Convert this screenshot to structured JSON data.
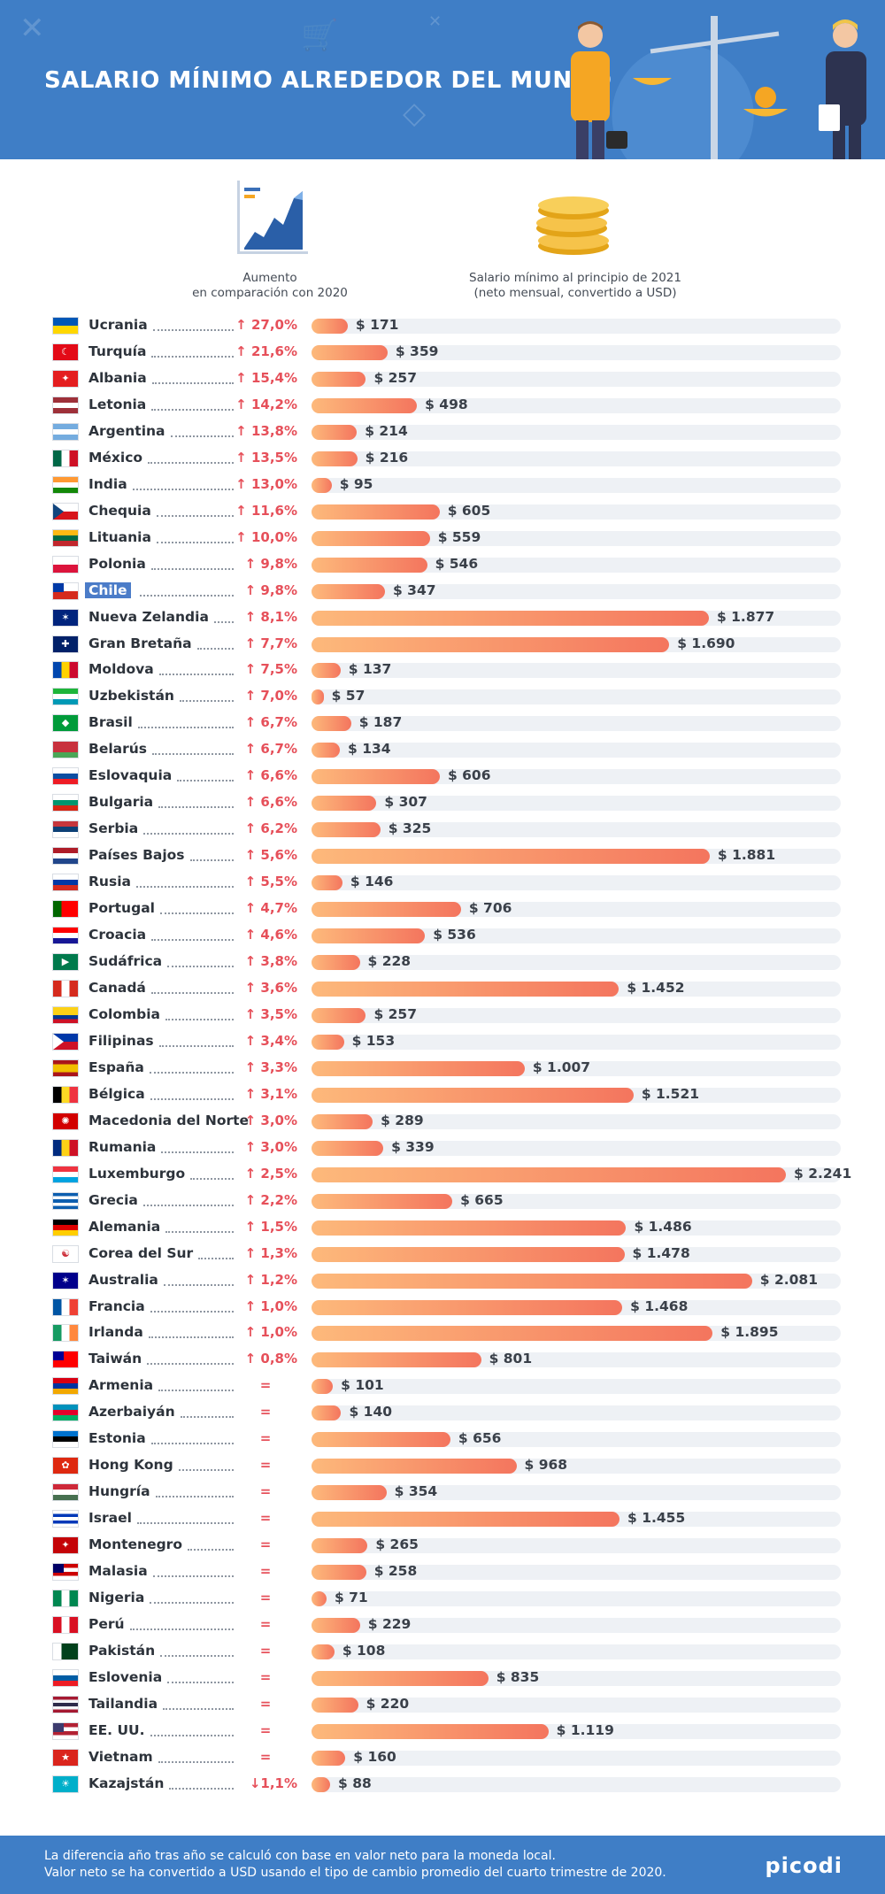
{
  "header": {
    "title": "SALARIO MÍNIMO ALREDEDOR DEL MUNDO"
  },
  "columns": {
    "increase_label_1": "Aumento",
    "increase_label_2": "en comparación con 2020",
    "salary_label_1": "Salario mínimo al principio de 2021",
    "salary_label_2": "(neto mensual, convertido a USD)"
  },
  "footer": {
    "note_1": "La diferencia año tras año se calculó con base en valor neto para la moneda local.",
    "note_2": "Valor neto se ha convertido a USD usando el tipo de cambio promedio del cuarto trimestre de 2020.",
    "brand": "picodi"
  },
  "colors": {
    "header": "#3f7ec6",
    "bar_start": "#fdb97b",
    "bar_end": "#f4755e",
    "increase": "#e6505a",
    "highlight": "#4b7cc8"
  },
  "chart_data": {
    "type": "bar",
    "orientation": "horizontal",
    "xlim": [
      0,
      2500
    ],
    "grid": false,
    "categories": [
      "Ucrania",
      "Turquía",
      "Albania",
      "Letonia",
      "Argentina",
      "México",
      "India",
      "Chequia",
      "Lituania",
      "Polonia",
      "Chile",
      "Nueva Zelandia",
      "Gran Bretaña",
      "Moldova",
      "Uzbekistán",
      "Brasil",
      "Belarús",
      "Eslovaquia",
      "Bulgaria",
      "Serbia",
      "Países Bajos",
      "Rusia",
      "Portugal",
      "Croacia",
      "Sudáfrica",
      "Canadá",
      "Colombia",
      "Filipinas",
      "España",
      "Bélgica",
      "Macedonia del Norte",
      "Rumania",
      "Luxemburgo",
      "Grecia",
      "Alemania",
      "Corea del Sur",
      "Australia",
      "Francia",
      "Irlanda",
      "Taiwán",
      "Armenia",
      "Azerbaiyán",
      "Estonia",
      "Hong Kong",
      "Hungría",
      "Israel",
      "Montenegro",
      "Malasia",
      "Nigeria",
      "Perú",
      "Pakistán",
      "Eslovenia",
      "Tailandia",
      "EE. UU.",
      "Vietnam",
      "Kazajstán"
    ],
    "values": [
      171,
      359,
      257,
      498,
      214,
      216,
      95,
      605,
      559,
      546,
      347,
      1877,
      1690,
      137,
      57,
      187,
      134,
      606,
      307,
      325,
      1881,
      146,
      706,
      536,
      228,
      1452,
      257,
      153,
      1007,
      1521,
      289,
      339,
      2241,
      665,
      1486,
      1478,
      2081,
      1468,
      1895,
      801,
      101,
      140,
      656,
      968,
      354,
      1455,
      265,
      258,
      71,
      229,
      108,
      835,
      220,
      1119,
      160,
      88
    ],
    "value_labels": [
      "$ 171",
      "$ 359",
      "$ 257",
      "$ 498",
      "$ 214",
      "$ 216",
      "$ 95",
      "$ 605",
      "$ 559",
      "$ 546",
      "$ 347",
      "$ 1.877",
      "$ 1.690",
      "$ 137",
      "$ 57",
      "$ 187",
      "$ 134",
      "$ 606",
      "$ 307",
      "$ 325",
      "$ 1.881",
      "$ 146",
      "$ 706",
      "$ 536",
      "$ 228",
      "$ 1.452",
      "$ 257",
      "$ 153",
      "$ 1.007",
      "$ 1.521",
      "$ 289",
      "$ 339",
      "$ 2.241",
      "$ 665",
      "$ 1.486",
      "$ 1.478",
      "$ 2.081",
      "$ 1.468",
      "$ 1.895",
      "$ 801",
      "$ 101",
      "$ 140",
      "$ 656",
      "$ 968",
      "$ 354",
      "$ 1.455",
      "$ 265",
      "$ 258",
      "$ 71",
      "$ 229",
      "$ 108",
      "$ 835",
      "$ 220",
      "$ 1.119",
      "$ 160",
      "$ 88"
    ],
    "increase_labels": [
      "↑ 27,0%",
      "↑ 21,6%",
      "↑ 15,4%",
      "↑ 14,2%",
      "↑ 13,8%",
      "↑ 13,5%",
      "↑ 13,0%",
      "↑ 11,6%",
      "↑ 10,0%",
      "↑ 9,8%",
      "↑ 9,8%",
      "↑ 8,1%",
      "↑ 7,7%",
      "↑ 7,5%",
      "↑ 7,0%",
      "↑ 6,7%",
      "↑ 6,7%",
      "↑ 6,6%",
      "↑ 6,6%",
      "↑ 6,2%",
      "↑ 5,6%",
      "↑ 5,5%",
      "↑ 4,7%",
      "↑ 4,6%",
      "↑ 3,8%",
      "↑ 3,6%",
      "↑ 3,5%",
      "↑ 3,4%",
      "↑ 3,3%",
      "↑ 3,1%",
      "↑ 3,0%",
      "↑ 3,0%",
      "↑ 2,5%",
      "↑ 2,2%",
      "↑ 1,5%",
      "↑ 1,3%",
      "↑ 1,2%",
      "↑ 1,0%",
      "↑ 1,0%",
      "↑ 0,8%",
      "=",
      "=",
      "=",
      "=",
      "=",
      "=",
      "=",
      "=",
      "=",
      "=",
      "=",
      "=",
      "=",
      "=",
      "=",
      "↓1,1%"
    ],
    "highlighted": "Chile",
    "flags": [
      {
        "stripes": [
          "#0057b7",
          "#ffd700"
        ]
      },
      {
        "fill": "#e30a17",
        "mark": "☾"
      },
      {
        "fill": "#e41e20",
        "mark": "✦"
      },
      {
        "stripes": [
          "#9e3039",
          "#ffffff",
          "#9e3039"
        ]
      },
      {
        "stripes": [
          "#74acdf",
          "#ffffff",
          "#74acdf"
        ]
      },
      {
        "vstripes": [
          "#006847",
          "#ffffff",
          "#ce1126"
        ]
      },
      {
        "stripes": [
          "#ff9933",
          "#ffffff",
          "#138808"
        ]
      },
      {
        "stripes": [
          "#ffffff",
          "#d7141a"
        ],
        "tri": "#11457e"
      },
      {
        "stripes": [
          "#fdb913",
          "#006a44",
          "#c1272d"
        ]
      },
      {
        "stripes": [
          "#ffffff",
          "#dc143c"
        ]
      },
      {
        "stripes": [
          "#ffffff",
          "#d52b1e"
        ],
        "canton": "#0039a6"
      },
      {
        "fill": "#00247d",
        "mark": "✶"
      },
      {
        "fill": "#012169",
        "mark": "✚"
      },
      {
        "vstripes": [
          "#0046ae",
          "#ffd200",
          "#cc092f"
        ]
      },
      {
        "stripes": [
          "#1eb53a",
          "#ffffff",
          "#0099b5"
        ]
      },
      {
        "fill": "#009b3a",
        "mark": "◆"
      },
      {
        "stripes": [
          "#c8313e",
          "#c8313e",
          "#4aa657"
        ]
      },
      {
        "stripes": [
          "#ffffff",
          "#0b4ea2",
          "#ee1c25"
        ]
      },
      {
        "stripes": [
          "#ffffff",
          "#00966e",
          "#d62612"
        ]
      },
      {
        "stripes": [
          "#c6363c",
          "#0c4076",
          "#ffffff"
        ]
      },
      {
        "stripes": [
          "#ae1c28",
          "#ffffff",
          "#21468b"
        ]
      },
      {
        "stripes": [
          "#ffffff",
          "#0039a6",
          "#d52b1e"
        ]
      },
      {
        "vstripes": [
          "#006600",
          "#ff0000",
          "#ff0000"
        ]
      },
      {
        "stripes": [
          "#ff0000",
          "#ffffff",
          "#171796"
        ]
      },
      {
        "fill": "#007a4d",
        "mark": "▶"
      },
      {
        "vstripes": [
          "#d52b1e",
          "#ffffff",
          "#d52b1e"
        ]
      },
      {
        "stripes": [
          "#fcd116",
          "#fcd116",
          "#003893",
          "#ce1126"
        ]
      },
      {
        "stripes": [
          "#0038a8",
          "#ce1126"
        ],
        "tri": "#ffffff"
      },
      {
        "stripes": [
          "#aa151b",
          "#f1bf00",
          "#f1bf00",
          "#aa151b"
        ]
      },
      {
        "vstripes": [
          "#000000",
          "#fdda24",
          "#ef3340"
        ]
      },
      {
        "fill": "#d20000",
        "mark": "✺"
      },
      {
        "vstripes": [
          "#002b7f",
          "#fcd116",
          "#ce1126"
        ]
      },
      {
        "stripes": [
          "#ef3340",
          "#ffffff",
          "#00a3e0"
        ]
      },
      {
        "stripes": [
          "#0d5eaf",
          "#ffffff",
          "#0d5eaf",
          "#ffffff",
          "#0d5eaf"
        ]
      },
      {
        "stripes": [
          "#000000",
          "#dd0000",
          "#ffce00"
        ]
      },
      {
        "fill": "#ffffff",
        "mark": "☯"
      },
      {
        "fill": "#00008b",
        "mark": "✶"
      },
      {
        "vstripes": [
          "#0055a4",
          "#ffffff",
          "#ef4135"
        ]
      },
      {
        "vstripes": [
          "#169b62",
          "#ffffff",
          "#ff883e"
        ]
      },
      {
        "stripes": [
          "#fe0000",
          "#fe0000"
        ],
        "canton": "#000095"
      },
      {
        "stripes": [
          "#d90012",
          "#0033a0",
          "#f2a800"
        ]
      },
      {
        "stripes": [
          "#0092bc",
          "#e4002b",
          "#00af66"
        ]
      },
      {
        "stripes": [
          "#0072ce",
          "#000000",
          "#ffffff"
        ]
      },
      {
        "fill": "#de2910",
        "mark": "✿"
      },
      {
        "stripes": [
          "#ce2939",
          "#ffffff",
          "#477050"
        ]
      },
      {
        "stripes": [
          "#ffffff",
          "#0038b8",
          "#ffffff",
          "#0038b8",
          "#ffffff"
        ]
      },
      {
        "fill": "#c40308",
        "mark": "✦"
      },
      {
        "stripes": [
          "#cc0001",
          "#ffffff",
          "#cc0001",
          "#ffffff"
        ],
        "canton": "#010066"
      },
      {
        "vstripes": [
          "#008751",
          "#ffffff",
          "#008751"
        ]
      },
      {
        "vstripes": [
          "#d91023",
          "#ffffff",
          "#d91023"
        ]
      },
      {
        "vstripes": [
          "#ffffff",
          "#01411c",
          "#01411c"
        ]
      },
      {
        "stripes": [
          "#ffffff",
          "#005da4",
          "#ed1c24"
        ]
      },
      {
        "stripes": [
          "#a51931",
          "#f4f5f8",
          "#2d2a4a",
          "#f4f5f8",
          "#a51931"
        ]
      },
      {
        "stripes": [
          "#b22234",
          "#ffffff",
          "#b22234",
          "#ffffff"
        ],
        "canton": "#3c3b6e"
      },
      {
        "fill": "#da251d",
        "mark": "★"
      },
      {
        "fill": "#00afca",
        "mark": "☀"
      }
    ]
  }
}
